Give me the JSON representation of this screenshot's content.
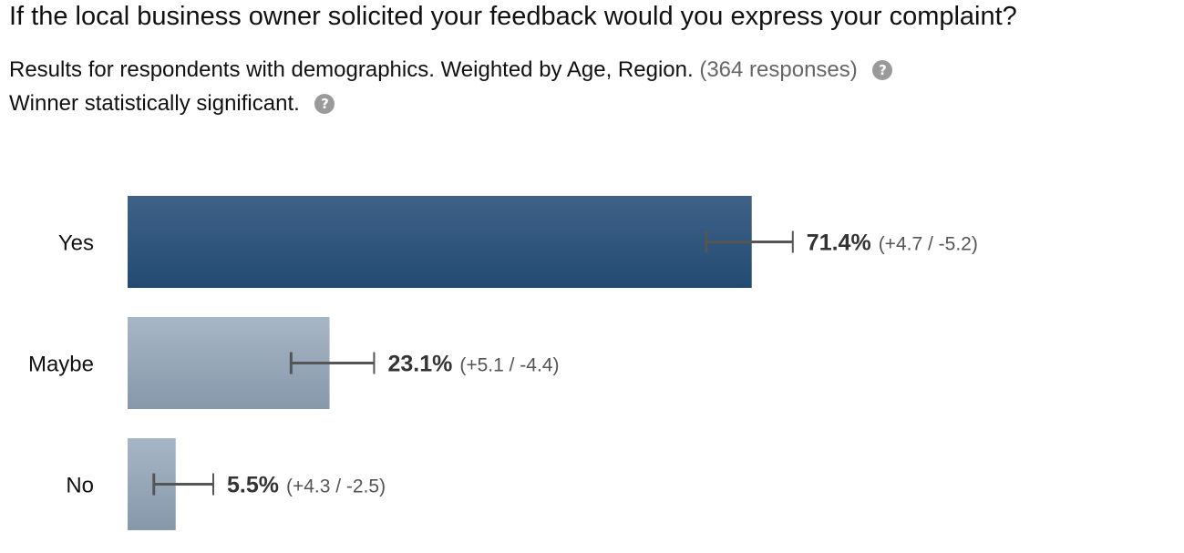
{
  "question": "If the local business owner solicited your feedback would you express your complaint?",
  "results_text": "Results for respondents with demographics. Weighted by Age, Region.",
  "responses_text": "(364 responses)",
  "significance_text": "Winner statistically significant.",
  "help_icon_glyph": "?",
  "colors": {
    "winner_top": "#3f6187",
    "winner_bottom": "#234b72",
    "other_top": "#a6b6c5",
    "other_bottom": "#8798ab",
    "error_bar": "#555555"
  },
  "chart_data": {
    "type": "bar",
    "orientation": "horizontal",
    "categories": [
      "Yes",
      "Maybe",
      "No"
    ],
    "values": [
      71.4,
      23.1,
      5.5
    ],
    "value_labels": [
      "71.4%",
      "23.1%",
      "5.5%"
    ],
    "ci_plus": [
      4.7,
      5.1,
      4.3
    ],
    "ci_minus": [
      5.2,
      4.4,
      2.5
    ],
    "ci_labels": [
      "(+4.7 / -5.2)",
      "(+5.1 / -4.4)",
      "(+4.3 / -2.5)"
    ],
    "winner_index": 0,
    "xlim": [
      0,
      100
    ],
    "grid": false,
    "legend": "none",
    "title": "",
    "xlabel": "",
    "ylabel": ""
  }
}
